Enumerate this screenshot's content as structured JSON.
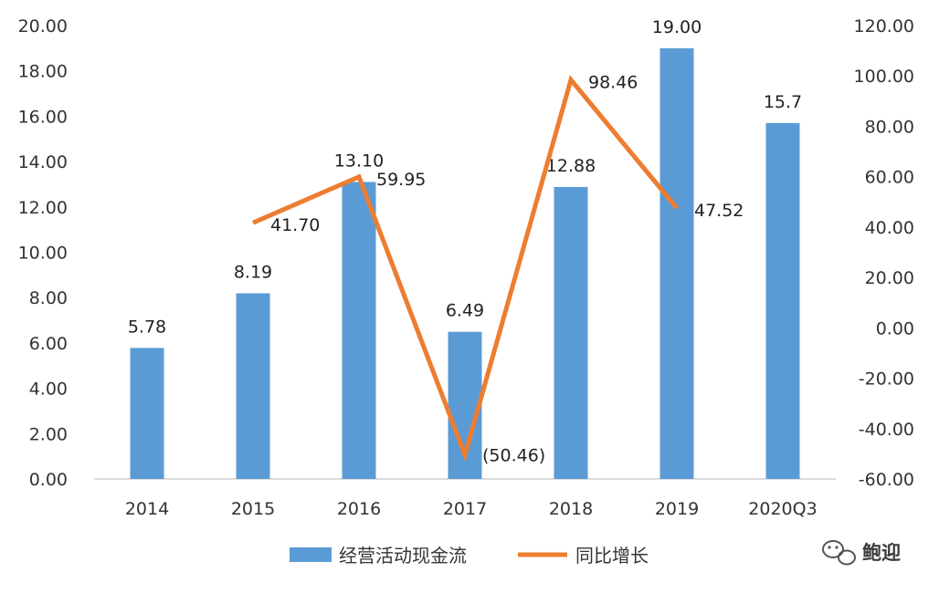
{
  "chart_data": {
    "type": "bar+line",
    "title": "",
    "categories": [
      "2014",
      "2015",
      "2016",
      "2017",
      "2018",
      "2019",
      "2020Q3"
    ],
    "series": [
      {
        "name": "经营活动现金流",
        "type": "bar",
        "axis": "left",
        "color": "#5b9bd5",
        "values": [
          5.78,
          8.19,
          13.1,
          6.49,
          12.88,
          19.0,
          15.7
        ],
        "labels": [
          "5.78",
          "8.19",
          "13.10",
          "6.49",
          "12.88",
          "19.00",
          "15.7"
        ]
      },
      {
        "name": "同比增长",
        "type": "line",
        "axis": "right",
        "color": "#ed7d31",
        "values": [
          null,
          41.7,
          59.95,
          -50.46,
          98.46,
          47.52,
          null
        ],
        "labels": [
          null,
          "41.70",
          "59.95",
          "(50.46)",
          "98.46",
          "47.52",
          null
        ],
        "negative_label_color": "#c00000"
      }
    ],
    "y_left": {
      "ylim": [
        0,
        20
      ],
      "ticks": [
        "0.00",
        "2.00",
        "4.00",
        "6.00",
        "8.00",
        "10.00",
        "12.00",
        "14.00",
        "16.00",
        "18.00",
        "20.00"
      ]
    },
    "y_right": {
      "ylim": [
        -60,
        120
      ],
      "ticks": [
        "-60.00",
        "-40.00",
        "-20.00",
        "0.00",
        "20.00",
        "40.00",
        "60.00",
        "80.00",
        "100.00",
        "120.00"
      ]
    },
    "grid": false,
    "legend": "bottom-center"
  },
  "watermark": {
    "text": "鲍迎",
    "icon": "wechat-icon"
  }
}
